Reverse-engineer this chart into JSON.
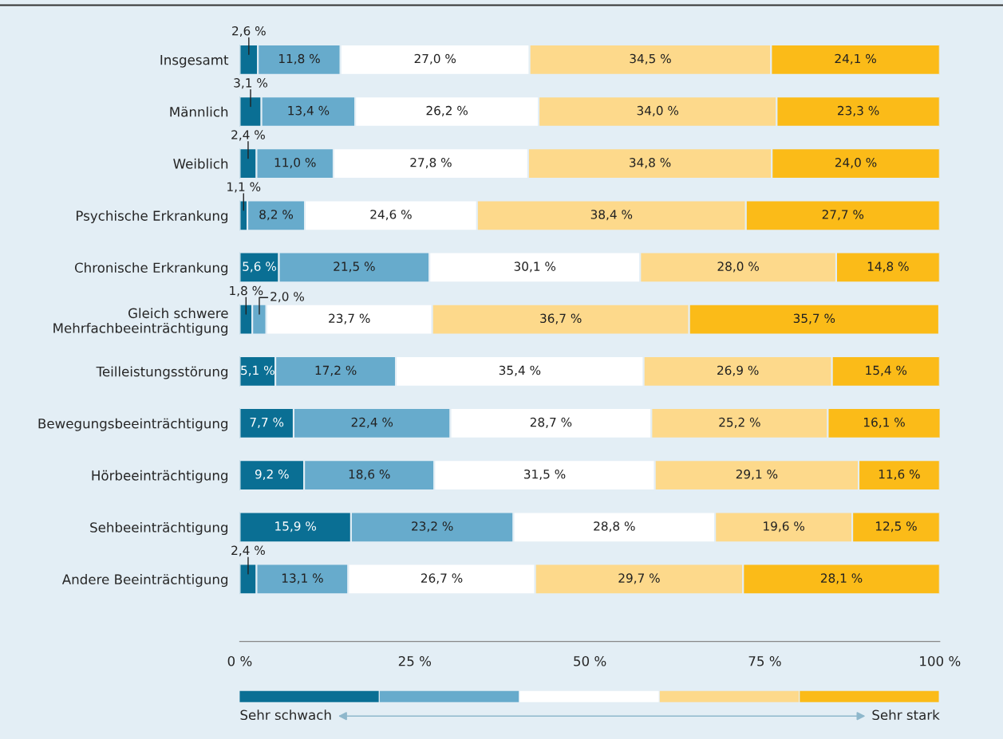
{
  "chart_data": {
    "type": "bar",
    "orientation": "horizontal",
    "stacked": true,
    "data_labels": true,
    "categories": [
      "Insgesamt",
      "Männlich",
      "Weiblich",
      "Psychische Erkrankung",
      "Chronische Erkrankung",
      "Gleich schwere\nMehrfachbeeinträchtigung",
      "Teilleistungsstörung",
      "Bewegungsbeeinträchtigung",
      "Hörbeeinträchtigung",
      "Sehbeeinträchtigung",
      "Andere Beeinträchtigung"
    ],
    "series": [
      {
        "color": "#0a6f94",
        "values": [
          2.6,
          3.1,
          2.4,
          1.1,
          5.6,
          1.8,
          5.1,
          7.7,
          9.2,
          15.9,
          2.4
        ],
        "value_labels": [
          "2,6 %",
          "3,1 %",
          "2,4 %",
          "1,1 %",
          "5,6 %",
          "1,8 %",
          "5,1 %",
          "7,7 %",
          "9,2 %",
          "15,9 %",
          "2,4 %"
        ]
      },
      {
        "color": "#67abcc",
        "values": [
          11.8,
          13.4,
          11.0,
          8.2,
          21.5,
          2.0,
          17.2,
          22.4,
          18.6,
          23.2,
          13.1
        ],
        "value_labels": [
          "11,8 %",
          "13,4 %",
          "11,0 %",
          "8,2 %",
          "21,5 %",
          "2,0 %",
          "17,2 %",
          "22,4 %",
          "18,6 %",
          "23,2 %",
          "13,1 %"
        ]
      },
      {
        "color": "#ffffff",
        "values": [
          27.0,
          26.2,
          27.8,
          24.6,
          30.1,
          23.7,
          35.4,
          28.7,
          31.5,
          28.8,
          26.7
        ],
        "value_labels": [
          "27,0 %",
          "26,2 %",
          "27,8 %",
          "24,6 %",
          "30,1 %",
          "23,7 %",
          "35,4 %",
          "28,7 %",
          "31,5 %",
          "28,8 %",
          "26,7 %"
        ]
      },
      {
        "color": "#fdd98b",
        "values": [
          34.5,
          34.0,
          34.8,
          38.4,
          28.0,
          36.7,
          26.9,
          25.2,
          29.1,
          19.6,
          29.7
        ],
        "value_labels": [
          "34,5 %",
          "34,0 %",
          "34,8 %",
          "38,4 %",
          "28,0 %",
          "36,7 %",
          "26,9 %",
          "25,2 %",
          "29,1 %",
          "19,6 %",
          "29,7 %"
        ]
      },
      {
        "color": "#fbbb18",
        "values": [
          24.1,
          23.3,
          24.0,
          27.7,
          14.8,
          35.7,
          15.4,
          16.1,
          11.6,
          12.5,
          28.1
        ],
        "value_labels": [
          "24,1 %",
          "23,3 %",
          "24,0 %",
          "27,7 %",
          "14,8 %",
          "35,7 %",
          "15,4 %",
          "16,1 %",
          "11,6 %",
          "12,5 %",
          "28,1 %"
        ]
      }
    ],
    "xlim": [
      0,
      100
    ],
    "xticks": [
      {
        "value": 0,
        "label": "0 %"
      },
      {
        "value": 25,
        "label": "25 %"
      },
      {
        "value": 50,
        "label": "50 %"
      },
      {
        "value": 75,
        "label": "75 %"
      },
      {
        "value": 100,
        "label": "100 %"
      }
    ],
    "grid": false,
    "legend": false,
    "annotations": [
      "Sehr schwach",
      "Sehr stark"
    ]
  }
}
